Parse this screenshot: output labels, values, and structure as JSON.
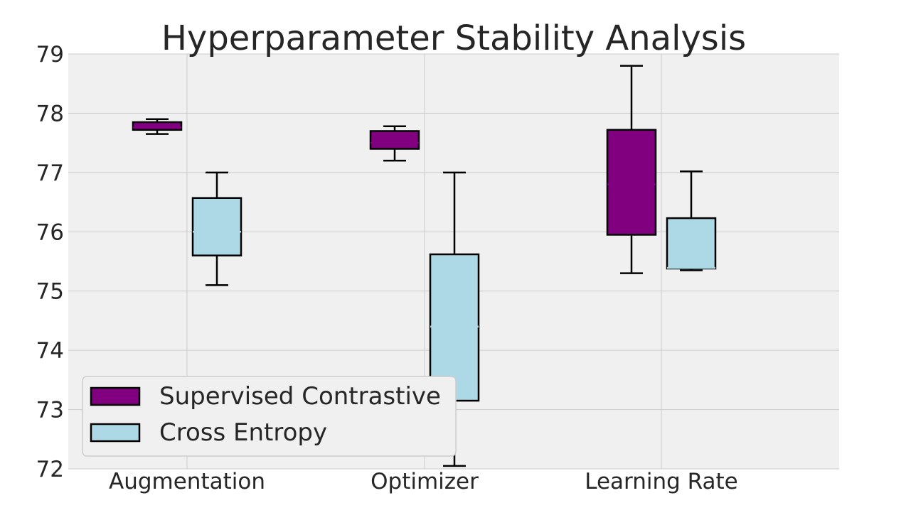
{
  "chart_data": {
    "type": "box",
    "title": "Hyperparameter Stability Analysis",
    "xlabel": "",
    "ylabel": "",
    "ylim": [
      72,
      79
    ],
    "yticks": [
      "72",
      "73",
      "74",
      "75",
      "76",
      "77",
      "78",
      "79"
    ],
    "categories": [
      "Augmentation",
      "Optimizer",
      "Learning Rate"
    ],
    "grid": true,
    "legend_position": "lower-left",
    "series": [
      {
        "name": "Supervised Contrastive",
        "color": "#800080",
        "boxes": [
          {
            "min": 77.65,
            "q1": 77.72,
            "median": 77.76,
            "q3": 77.85,
            "max": 77.9
          },
          {
            "min": 77.2,
            "q1": 77.4,
            "median": 77.5,
            "q3": 77.7,
            "max": 77.78
          },
          {
            "min": 75.3,
            "q1": 75.95,
            "median": 76.8,
            "q3": 77.72,
            "max": 78.8
          }
        ]
      },
      {
        "name": "Cross Entropy",
        "color": "#add8e6",
        "boxes": [
          {
            "min": 75.1,
            "q1": 75.6,
            "median": 76.0,
            "q3": 76.57,
            "max": 77.0
          },
          {
            "min": 72.05,
            "q1": 73.15,
            "median": 74.4,
            "q3": 75.62,
            "max": 77.0
          },
          {
            "min": 75.35,
            "q1": 75.38,
            "median": 75.39,
            "q3": 76.23,
            "max": 77.02
          }
        ]
      }
    ]
  }
}
